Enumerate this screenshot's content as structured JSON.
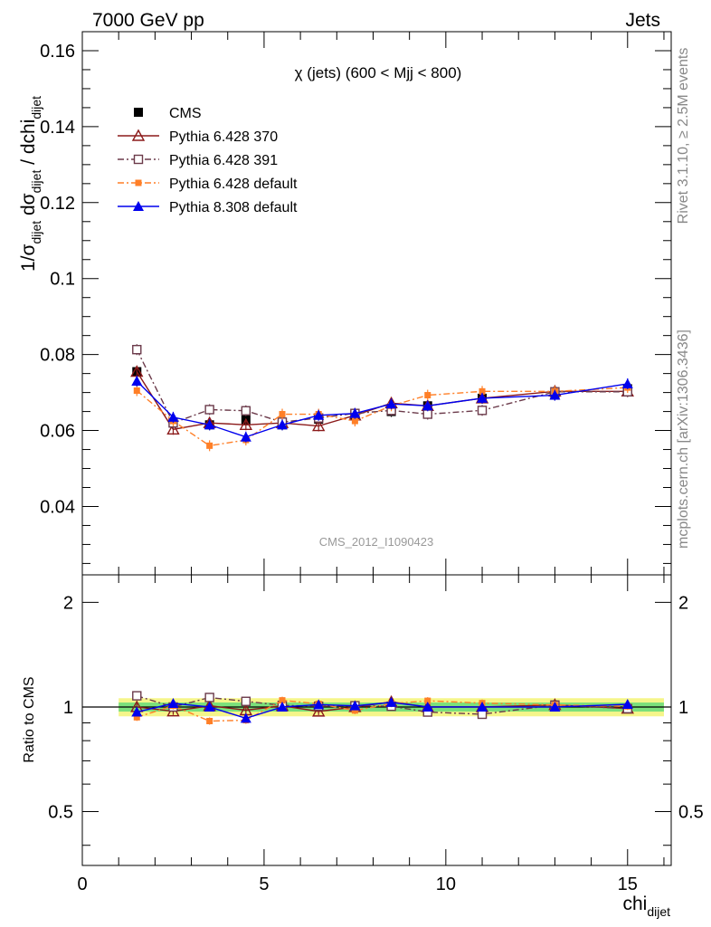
{
  "header": {
    "left": "7000 GeV pp",
    "right": "Jets"
  },
  "side_labels": {
    "rivet": "Rivet 3.1.10, ≥ 2.5M events",
    "mcplots": "mcplots.cern.ch [arXiv:1306.3436]"
  },
  "watermark": "CMS_2012_I1090423",
  "colors": {
    "cms": "#000000",
    "p370": "#8b1a1a",
    "p391": "#6b3a4a",
    "p6def": "#ff7f27",
    "p8def": "#0000ee",
    "band_inner": "#7be07b",
    "band_outer": "#f5f58a"
  },
  "chart_data": [
    {
      "type": "scatter",
      "title": "χ (jets) (600 < Mjj <  800)",
      "ylabel": "1/σ_dijet dσ_dijet / dchi_dijet",
      "ylabel_parts": {
        "a": "1/σ",
        "a_sub": "dijet",
        "b": " dσ",
        "b_sub": "dijet",
        "c": " / dchi",
        "c_sub": "dijet"
      },
      "xlim": [
        0,
        16.2
      ],
      "ylim": [
        0.022,
        0.165
      ],
      "y_ticks": [
        "0.04",
        "0.06",
        "0.08",
        "0.1",
        "0.12",
        "0.14",
        "0.16"
      ],
      "x": [
        1.5,
        2.5,
        3.5,
        4.5,
        5.5,
        6.5,
        7.5,
        8.5,
        9.5,
        11.0,
        13.0,
        15.0
      ],
      "series": [
        {
          "name": "CMS",
          "key": "cms",
          "marker": "square-filled",
          "line": "none",
          "y": [
            0.0755,
            0.062,
            0.0615,
            0.0628,
            0.0615,
            0.063,
            0.064,
            0.065,
            0.0665,
            0.0685,
            0.0693,
            0.071
          ]
        },
        {
          "name": "Pythia 6.428 370",
          "key": "p370",
          "marker": "triangle-open",
          "line": "solid",
          "y": [
            0.0755,
            0.0603,
            0.062,
            0.0615,
            0.062,
            0.0612,
            0.064,
            0.0672,
            0.0665,
            0.0685,
            0.0703,
            0.0703
          ]
        },
        {
          "name": "Pythia 6.428 391",
          "key": "p391",
          "marker": "square-open",
          "line": "dashdot",
          "y": [
            0.0813,
            0.062,
            0.0655,
            0.0652,
            0.0622,
            0.0633,
            0.0645,
            0.0653,
            0.0643,
            0.0653,
            0.0702,
            0.0702
          ]
        },
        {
          "name": "Pythia 6.428 default",
          "key": "p6def",
          "marker": "square-small",
          "line": "dashdot",
          "y": [
            0.0705,
            0.0625,
            0.056,
            0.0575,
            0.0643,
            0.0643,
            0.0625,
            0.0665,
            0.0693,
            0.0703,
            0.0703,
            0.0713
          ]
        },
        {
          "name": "Pythia 8.308 default",
          "key": "p8def",
          "marker": "triangle-filled",
          "line": "solid",
          "y": [
            0.073,
            0.0635,
            0.0615,
            0.0583,
            0.0615,
            0.064,
            0.0645,
            0.067,
            0.0665,
            0.0685,
            0.0693,
            0.0723
          ]
        }
      ]
    },
    {
      "type": "scatter",
      "ylabel": "Ratio to CMS",
      "xlabel": "chi_dijet",
      "xlabel_parts": {
        "a": "chi",
        "a_sub": "dijet"
      },
      "xlim": [
        0,
        16.2
      ],
      "ylim": [
        0.35,
        2.4
      ],
      "y_scale": "log",
      "y_ticks": [
        "0.5",
        "1",
        "2"
      ],
      "x_ticks": [
        "0",
        "5",
        "10",
        "15"
      ],
      "band": {
        "inner": 0.03,
        "outer": 0.06
      },
      "x": [
        1.5,
        2.5,
        3.5,
        4.5,
        5.5,
        6.5,
        7.5,
        8.5,
        9.5,
        11.0,
        13.0,
        15.0
      ],
      "series": [
        {
          "name": "Pythia 6.428 370",
          "key": "p370",
          "marker": "triangle-open",
          "line": "solid",
          "y": [
            1.0,
            0.972,
            1.008,
            0.979,
            1.008,
            0.971,
            1.0,
            1.034,
            1.0,
            1.0,
            1.014,
            0.99
          ]
        },
        {
          "name": "Pythia 6.428 391",
          "key": "p391",
          "marker": "square-open",
          "line": "dashdot",
          "y": [
            1.077,
            1.0,
            1.065,
            1.038,
            1.011,
            1.005,
            1.008,
            1.005,
            0.967,
            0.953,
            1.013,
            0.989
          ]
        },
        {
          "name": "Pythia 6.428 default",
          "key": "p6def",
          "marker": "square-small",
          "line": "dashdot",
          "y": [
            0.934,
            1.008,
            0.911,
            0.916,
            1.045,
            1.021,
            0.977,
            1.023,
            1.042,
            1.026,
            1.014,
            1.004
          ]
        },
        {
          "name": "Pythia 8.308 default",
          "key": "p8def",
          "marker": "triangle-filled",
          "line": "solid",
          "y": [
            0.967,
            1.024,
            1.0,
            0.928,
            1.0,
            1.016,
            1.008,
            1.031,
            1.0,
            1.0,
            1.0,
            1.018
          ]
        }
      ]
    }
  ]
}
